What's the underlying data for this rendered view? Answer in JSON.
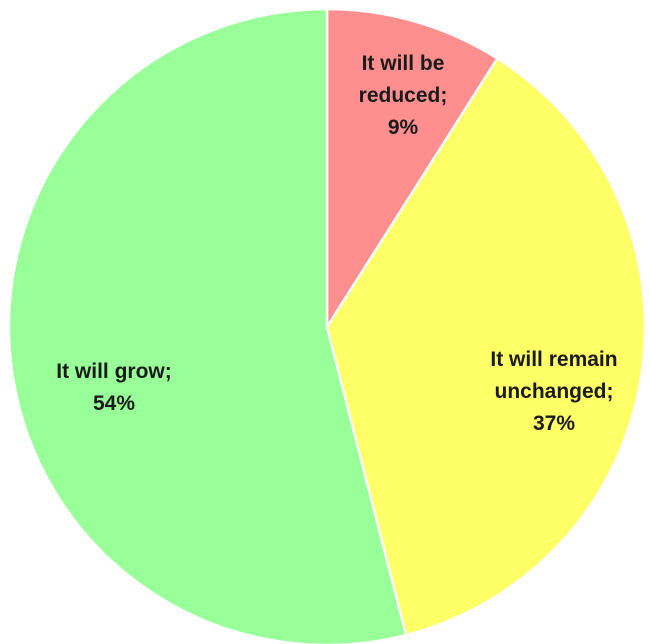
{
  "chart_data": {
    "type": "pie",
    "title": "",
    "start_angle_deg": 0,
    "direction": "clockwise",
    "slices": [
      {
        "label": "It will be reduced",
        "value": 9,
        "value_label": "9%",
        "color": "#ff8f8f",
        "label_lines": [
          "It will be",
          "reduced;",
          "9%"
        ]
      },
      {
        "label": "It will remain unchanged",
        "value": 37,
        "value_label": "37%",
        "color": "#ffff66",
        "label_lines": [
          "It will remain",
          "unchanged;",
          "37%"
        ]
      },
      {
        "label": "It will grow",
        "value": 54,
        "value_label": "54%",
        "color": "#99ff99",
        "label_lines": [
          "It will grow;",
          "54%"
        ]
      }
    ]
  }
}
